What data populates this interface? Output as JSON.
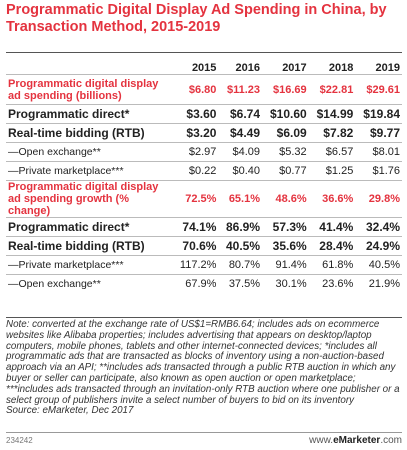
{
  "title": "Programmatic Digital Display Ad Spending in China, by Transaction Method, 2015-2019",
  "chart_data": {
    "type": "table",
    "columns": [
      "2015",
      "2016",
      "2017",
      "2018",
      "2019"
    ],
    "rows": [
      {
        "label": "Programmatic digital display ad spending (billions)",
        "values": [
          "$6.80",
          "$11.23",
          "$16.69",
          "$22.81",
          "$29.61"
        ],
        "style": "red"
      },
      {
        "label": "Programmatic direct*",
        "values": [
          "$3.60",
          "$6.74",
          "$10.60",
          "$14.99",
          "$19.84"
        ],
        "style": "bold"
      },
      {
        "label": "Real-time bidding (RTB)",
        "values": [
          "$3.20",
          "$4.49",
          "$6.09",
          "$7.82",
          "$9.77"
        ],
        "style": "bold"
      },
      {
        "label": "—Open exchange**",
        "values": [
          "$2.97",
          "$4.09",
          "$5.32",
          "$6.57",
          "$8.01"
        ],
        "style": "normal"
      },
      {
        "label": "—Private marketplace***",
        "values": [
          "$0.22",
          "$0.40",
          "$0.77",
          "$1.25",
          "$1.76"
        ],
        "style": "normal"
      },
      {
        "label": "Programmatic digital display ad spending growth (% change)",
        "values": [
          "72.5%",
          "65.1%",
          "48.6%",
          "36.6%",
          "29.8%"
        ],
        "style": "red"
      },
      {
        "label": "Programmatic direct*",
        "values": [
          "74.1%",
          "86.9%",
          "57.3%",
          "41.4%",
          "32.4%"
        ],
        "style": "bold"
      },
      {
        "label": "Real-time bidding (RTB)",
        "values": [
          "70.6%",
          "40.5%",
          "35.6%",
          "28.4%",
          "24.9%"
        ],
        "style": "bold"
      },
      {
        "label": "—Private marketplace***",
        "values": [
          "117.2%",
          "80.7%",
          "91.4%",
          "61.8%",
          "40.5%"
        ],
        "style": "normal"
      },
      {
        "label": "—Open exchange**",
        "values": [
          "67.9%",
          "37.5%",
          "30.1%",
          "23.6%",
          "21.9%"
        ],
        "style": "normal"
      }
    ]
  },
  "note": "Note: converted at the exchange rate of US$1=RMB6.64; includes ads on ecommerce websites like Alibaba properties; includes advertising that appears on desktop/laptop computers, mobile phones, tablets and other internet-connected devices; *includes all programmatic ads that are transacted as blocks of inventory using a non-auction-based approach via an API; **includes ads transacted through a public RTB auction in which any buyer or seller can participate, also known as open auction or open marketplace; ***includes ads transacted through an invitation-only RTB auction where one publisher or a select group of publishers invite a select number of buyers to bid on its inventory",
  "source": "Source: eMarketer, Dec 2017",
  "chart_id": "234242",
  "brand": {
    "prefix": "www.",
    "name": "eMarketer",
    "suffix": ".com"
  },
  "colors": {
    "accent": "#e4333f"
  }
}
